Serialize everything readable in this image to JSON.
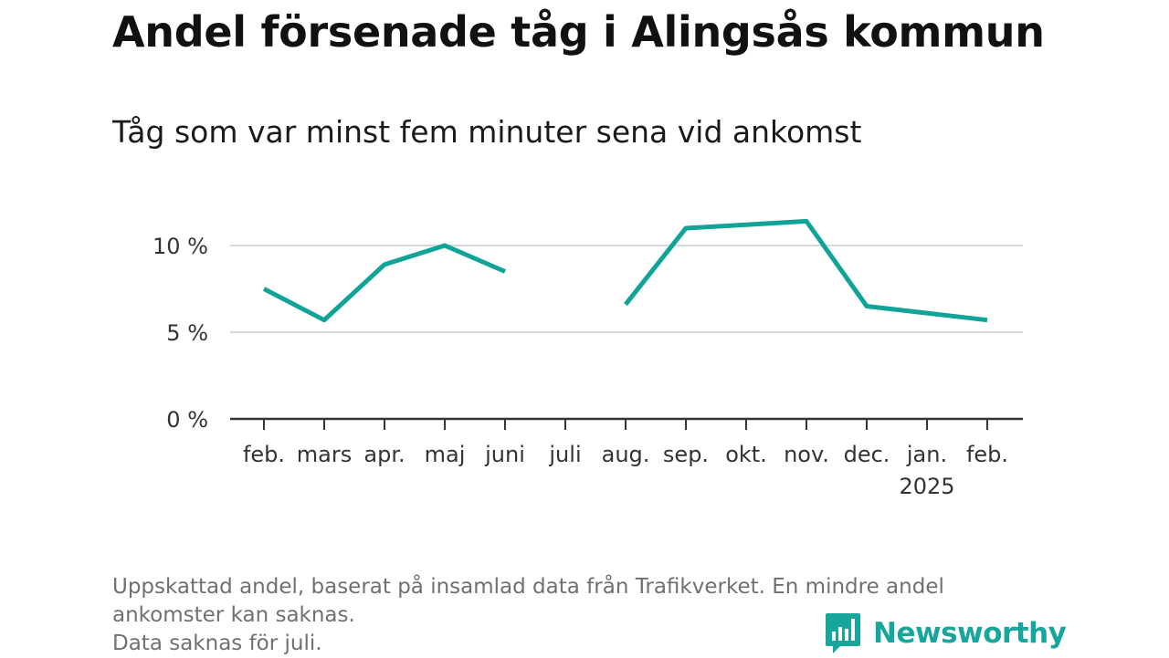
{
  "title": "Andel försenade tåg i Alingsås kommun",
  "subtitle": "Tåg som var minst fem minuter sena vid ankomst",
  "footnote": {
    "line1": "Uppskattad andel, baserat på insamlad data från Trafikverket. En mindre andel",
    "line2": "ankomster kan saknas.",
    "line3": "Data saknas för juli."
  },
  "brand": {
    "name": "Newsworthy",
    "icon": "bar-chart-speech-bubble-icon",
    "color": "#17a69b"
  },
  "colors": {
    "line": "#10a398",
    "grid": "#d9d9d9",
    "axis": "#333333"
  },
  "chart_data": {
    "type": "line",
    "categories": [
      "feb.",
      "mars",
      "apr.",
      "maj",
      "juni",
      "juli",
      "aug.",
      "sep.",
      "okt.",
      "nov.",
      "dec.",
      "jan.",
      "feb."
    ],
    "category_sublabels": [
      "",
      "",
      "",
      "",
      "",
      "",
      "",
      "",
      "",
      "",
      "",
      "2025",
      ""
    ],
    "series": [
      {
        "values": [
          7.5,
          5.7,
          8.9,
          10.0,
          8.5,
          null,
          6.6,
          11.0,
          11.2,
          11.4,
          6.5,
          6.1,
          5.7
        ]
      }
    ],
    "yticks": [
      0,
      5,
      10
    ],
    "ytick_labels": [
      "0 %",
      "5 %",
      "10 %"
    ],
    "ylim": [
      0,
      10
    ],
    "grid": true,
    "legend": "none"
  }
}
